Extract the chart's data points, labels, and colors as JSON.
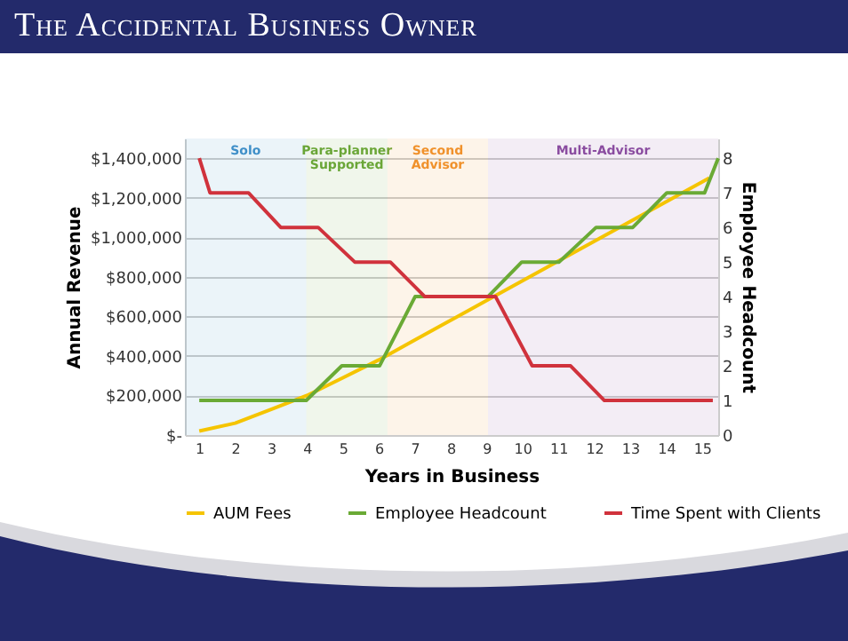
{
  "chart_data": {
    "type": "line",
    "title": "The Accidental Business Owner",
    "xlabel": "Years in Business",
    "ylabel": "Annual Revenue",
    "y2label": "Employee Headcount",
    "xlim": [
      0.6,
      15.45
    ],
    "xticks": [
      1,
      2,
      3,
      4,
      5,
      6,
      7,
      8,
      9,
      10,
      11,
      12,
      13,
      14,
      15
    ],
    "ylim": [
      0,
      1500000
    ],
    "yticks": [
      {
        "value": 0,
        "label": "$-"
      },
      {
        "value": 200000,
        "label": "$200,000"
      },
      {
        "value": 400000,
        "label": "$400,000"
      },
      {
        "value": 600000,
        "label": "$600,000"
      },
      {
        "value": 800000,
        "label": "$800,000"
      },
      {
        "value": 1000000,
        "label": "$1,000,000"
      },
      {
        "value": 1200000,
        "label": "$1,200,000"
      },
      {
        "value": 1400000,
        "label": "$1,400,000"
      }
    ],
    "y2lim": [
      0,
      8.57
    ],
    "y2ticks": [
      0,
      1,
      2,
      3,
      4,
      5,
      6,
      7,
      8
    ],
    "grid": "y",
    "legend": "bottom",
    "marker": "none",
    "line_style": "solid",
    "bands": [
      {
        "axis": "x",
        "from": 0.6,
        "to": 3.98,
        "label": "Solo",
        "color": "#3f8fc8"
      },
      {
        "axis": "x",
        "from": 3.98,
        "to": 6.24,
        "label": "Para-planner Supported",
        "color": "#6aa637"
      },
      {
        "axis": "x",
        "from": 6.24,
        "to": 9.04,
        "label": "Second Advisor",
        "color": "#f0912b"
      },
      {
        "axis": "x",
        "from": 9.04,
        "to": 15.45,
        "label": "Multi-Advisor",
        "color": "#8a4ca0"
      }
    ],
    "series": [
      {
        "name": "AUM Fees",
        "color": "#f5c400",
        "x": [
          1,
          2,
          3,
          4,
          5,
          6,
          7,
          8,
          9,
          10,
          11,
          12,
          13,
          14,
          15,
          15.2
        ],
        "values": [
          20000,
          60000,
          130000,
          200000,
          290000,
          380000,
          480000,
          580000,
          680000,
          780000,
          880000,
          980000,
          1080000,
          1180000,
          1280000,
          1300000
        ]
      },
      {
        "name": "Employee Headcount",
        "color": "#6aaa35",
        "axis": "y2",
        "x": [
          1,
          3.98,
          4.97,
          6.02,
          7.01,
          9.04,
          9.98,
          11.02,
          12.05,
          13.07,
          14.02,
          15.07,
          15.45
        ],
        "values": [
          1,
          1,
          2,
          2,
          4,
          4,
          5,
          5,
          6,
          6,
          7,
          7,
          8
        ]
      },
      {
        "name": "Time Spent with Clients",
        "color": "#d0323c",
        "axis": "y2",
        "x": [
          1,
          1.3,
          2.37,
          3.27,
          4.31,
          5.33,
          6.32,
          7.28,
          9.25,
          10.27,
          11.34,
          12.28,
          15.3
        ],
        "values": [
          8,
          7,
          7,
          6,
          6,
          5,
          5,
          4,
          4,
          2,
          2,
          1,
          1
        ]
      }
    ]
  }
}
